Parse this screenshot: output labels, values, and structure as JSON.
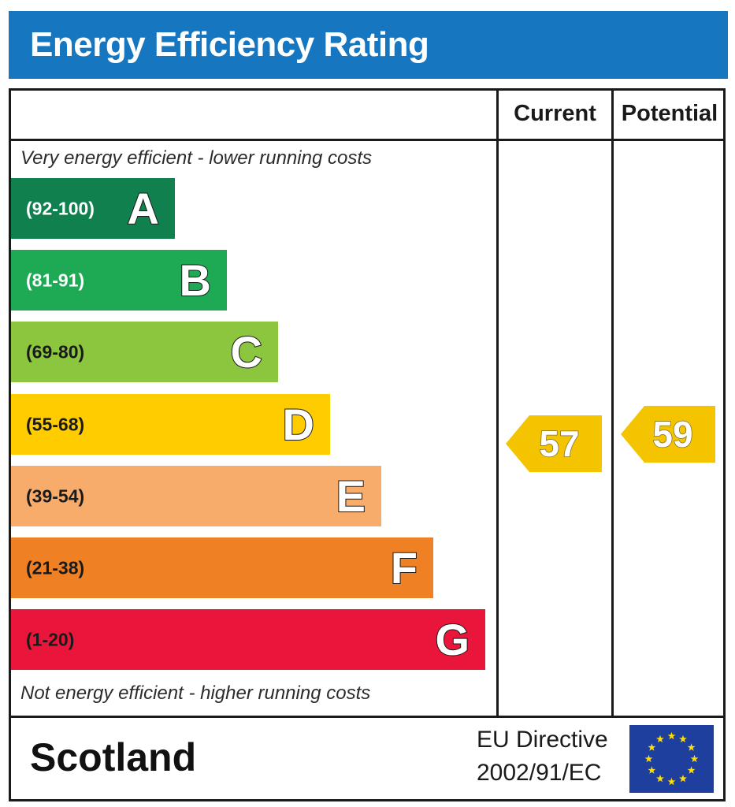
{
  "header": {
    "title": "Energy Efficiency Rating"
  },
  "columns": {
    "current": "Current",
    "potential": "Potential"
  },
  "notes": {
    "top": "Very energy efficient - lower running costs",
    "bottom": "Not energy efficient - higher running costs"
  },
  "footer": {
    "region": "Scotland",
    "directive_line1": "EU Directive",
    "directive_line2": "2002/91/EC",
    "flag_icon": "eu-flag-icon"
  },
  "chart_data": {
    "type": "bar",
    "categories": [
      "A",
      "B",
      "C",
      "D",
      "E",
      "F",
      "G"
    ],
    "bands": [
      {
        "letter": "A",
        "range": "(92-100)",
        "color": "#10804f",
        "range_color": "#ffffff"
      },
      {
        "letter": "B",
        "range": "(81-91)",
        "color": "#1eaa55",
        "range_color": "#ffffff"
      },
      {
        "letter": "C",
        "range": "(69-80)",
        "color": "#8cc63f",
        "range_color": "#1a1a1a"
      },
      {
        "letter": "D",
        "range": "(55-68)",
        "color": "#ffcc00",
        "range_color": "#1a1a1a"
      },
      {
        "letter": "E",
        "range": "(39-54)",
        "color": "#f7ac6b",
        "range_color": "#1a1a1a"
      },
      {
        "letter": "F",
        "range": "(21-38)",
        "color": "#ef8023",
        "range_color": "#1a1a1a"
      },
      {
        "letter": "G",
        "range": "(1-20)",
        "color": "#e9153b",
        "range_color": "#1a1a1a"
      }
    ],
    "current": {
      "value": 57,
      "band": "D",
      "color": "#f5c400"
    },
    "potential": {
      "value": 59,
      "band": "D",
      "color": "#f5c400"
    }
  }
}
